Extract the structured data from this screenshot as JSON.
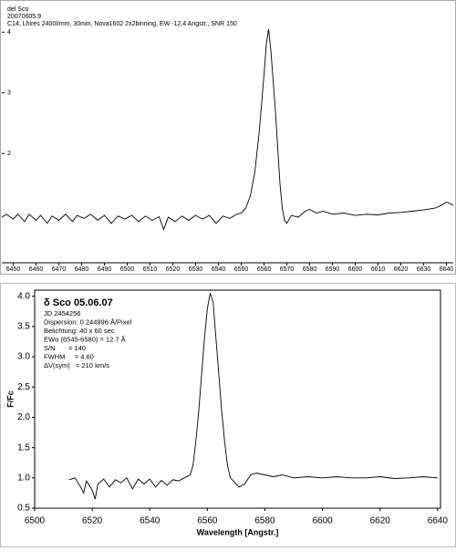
{
  "chart_data": [
    {
      "type": "line",
      "annotations": [
        "del Sco",
        "20070605.9",
        "C14, Lhires 2400l/mm, 30min, Nova1602 2x2binning, EW -12,4 Angstr., SNR 150"
      ],
      "color": "#000000",
      "x": [
        6445,
        6447,
        6450,
        6452,
        6455,
        6457,
        6460,
        6462,
        6465,
        6467,
        6470,
        6473,
        6476,
        6478,
        6481,
        6484,
        6487,
        6490,
        6493,
        6496,
        6499,
        6502,
        6505,
        6508,
        6511,
        6514,
        6516,
        6518,
        6521,
        6524,
        6527,
        6530,
        6533,
        6536,
        6539,
        6542,
        6545,
        6548,
        6550,
        6552,
        6554,
        6556,
        6558,
        6560,
        6561,
        6562,
        6563,
        6564,
        6565,
        6566,
        6567,
        6568,
        6569,
        6570,
        6572,
        6575,
        6578,
        6580,
        6583,
        6586,
        6590,
        6595,
        6600,
        6605,
        6610,
        6615,
        6620,
        6625,
        6630,
        6635,
        6638,
        6640,
        6643
      ],
      "values": [
        0.95,
        1.0,
        0.92,
        1.0,
        0.88,
        1.0,
        0.9,
        0.98,
        0.85,
        0.97,
        0.9,
        1.0,
        0.88,
        0.98,
        0.93,
        1.0,
        0.9,
        0.98,
        0.85,
        0.97,
        0.92,
        0.98,
        0.88,
        0.97,
        0.9,
        0.96,
        0.75,
        0.95,
        0.88,
        0.97,
        0.9,
        0.98,
        0.92,
        0.98,
        0.85,
        0.97,
        0.93,
        1.0,
        1.02,
        1.1,
        1.3,
        1.7,
        2.4,
        3.3,
        3.8,
        4.05,
        3.7,
        3.2,
        2.7,
        2.1,
        1.5,
        1.1,
        0.9,
        0.85,
        0.98,
        0.95,
        1.05,
        1.08,
        1.02,
        1.05,
        1.0,
        1.02,
        0.98,
        1.0,
        0.99,
        1.02,
        1.03,
        1.05,
        1.07,
        1.1,
        1.15,
        1.2,
        1.15
      ],
      "xlim": [
        6445,
        6643
      ],
      "ylim": [
        0.2,
        4.5
      ],
      "xticks": [
        6450,
        6460,
        6470,
        6480,
        6490,
        6500,
        6510,
        6520,
        6530,
        6540,
        6550,
        6560,
        6570,
        6580,
        6590,
        6600,
        6610,
        6620,
        6630,
        6640
      ],
      "yticks": [
        2,
        3,
        4
      ]
    },
    {
      "type": "line",
      "title": "δ Sco 05.06.07",
      "annotations": [
        "JD 2454256",
        "Dispersion: 0.244996 Å/Pixel",
        "Belichtung: 40 x 60 sec",
        "EWα (6545-6580) = 12.7 Å",
        "S/N       = 140",
        "FWHM     = 4.60",
        "ΔV(sym)   = 210 km/s"
      ],
      "x_label": "Wavelength [Angstr.]",
      "y_label": "F/Fc",
      "color": "#000000",
      "x": [
        6512,
        6514,
        6516,
        6517,
        6518,
        6520,
        6521,
        6522,
        6524,
        6526,
        6528,
        6530,
        6532,
        6534,
        6536,
        6538,
        6540,
        6542,
        6544,
        6546,
        6548,
        6550,
        6552,
        6554,
        6555,
        6556,
        6557,
        6558,
        6559,
        6560,
        6561,
        6562,
        6563,
        6564,
        6565,
        6566,
        6567,
        6568,
        6569,
        6571,
        6573,
        6575,
        6577,
        6580,
        6583,
        6586,
        6590,
        6595,
        6600,
        6605,
        6610,
        6615,
        6620,
        6625,
        6630,
        6635,
        6640
      ],
      "values": [
        0.97,
        1.0,
        0.85,
        0.75,
        0.95,
        0.8,
        0.65,
        0.9,
        0.98,
        0.85,
        0.97,
        0.92,
        1.0,
        0.82,
        0.98,
        0.9,
        0.98,
        0.85,
        0.96,
        0.88,
        0.97,
        0.95,
        1.0,
        1.05,
        1.2,
        1.6,
        2.1,
        2.7,
        3.3,
        3.8,
        4.05,
        3.9,
        3.3,
        2.7,
        2.1,
        1.6,
        1.2,
        1.0,
        0.95,
        0.85,
        0.9,
        1.05,
        1.08,
        1.05,
        1.02,
        1.05,
        1.0,
        1.02,
        1.0,
        1.02,
        1.0,
        1.0,
        1.02,
        0.99,
        1.0,
        1.02,
        1.0
      ],
      "xlim": [
        6500,
        6641
      ],
      "ylim": [
        0.5,
        4.1
      ],
      "xticks": [
        6500,
        6520,
        6540,
        6560,
        6580,
        6600,
        6620,
        6640
      ],
      "yticks": [
        0.5,
        {
          "value": 1,
          "label": "1.0"
        },
        1.5,
        {
          "value": 2,
          "label": "2.0"
        },
        2.5,
        {
          "value": 3,
          "label": "3.0"
        },
        3.5,
        {
          "value": 4,
          "label": "4.0"
        }
      ]
    }
  ]
}
